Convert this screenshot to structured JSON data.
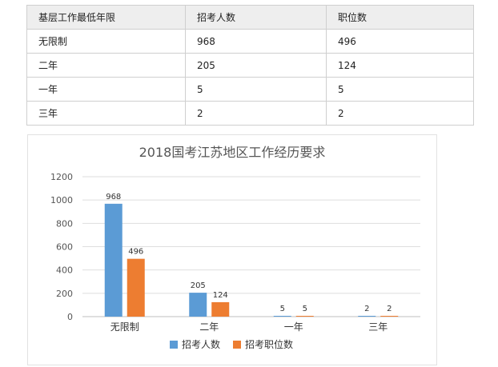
{
  "table": {
    "headers": [
      "基层工作最低年限",
      "招考人数",
      "职位数"
    ],
    "rows": [
      [
        "无限制",
        "968",
        "496"
      ],
      [
        "二年",
        "205",
        "124"
      ],
      [
        "一年",
        "5",
        "5"
      ],
      [
        "三年",
        "2",
        "2"
      ]
    ]
  },
  "chart_data": {
    "type": "bar",
    "title": "2018国考江苏地区工作经历要求",
    "categories": [
      "无限制",
      "二年",
      "一年",
      "三年"
    ],
    "series": [
      {
        "name": "招考人数",
        "values": [
          968,
          205,
          5,
          2
        ],
        "color": "#5b9bd5"
      },
      {
        "name": "招考职位数",
        "values": [
          496,
          124,
          5,
          2
        ],
        "color": "#ed7d31"
      }
    ],
    "yticks": [
      0,
      200,
      400,
      600,
      800,
      1000,
      1200
    ],
    "ylim": [
      0,
      1200
    ],
    "xlabel": "",
    "ylabel": "",
    "grid": true,
    "legend": "bottom"
  }
}
